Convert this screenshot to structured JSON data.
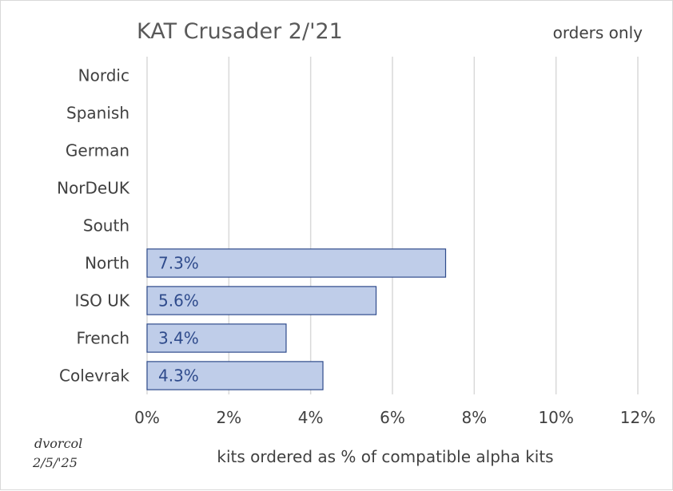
{
  "chart_data": {
    "type": "bar",
    "orientation": "horizontal",
    "title": "KAT Crusader 2/'21",
    "subtitle": "orders only",
    "categories": [
      "Nordic",
      "Spanish",
      "German",
      "NorDeUK",
      "South",
      "North",
      "ISO UK",
      "French",
      "Colevrak"
    ],
    "values": [
      0,
      0,
      0,
      0,
      0,
      7.3,
      5.6,
      3.4,
      4.3
    ],
    "data_labels": [
      "",
      "",
      "",
      "",
      "",
      "7.3%",
      "5.6%",
      "3.4%",
      "4.3%"
    ],
    "xlabel": "kits ordered as % of compatible alpha kits",
    "ylabel": "",
    "xlim": [
      0,
      12
    ],
    "x_ticks": [
      "0%",
      "2%",
      "4%",
      "6%",
      "8%",
      "10%",
      "12%"
    ],
    "grid": true,
    "bar_color": "#bfcde9",
    "bar_edge_color": "#2f4b8c",
    "gridline_color": "#d9d9d9",
    "signature": [
      "dvorcol",
      "2/5/'25"
    ]
  }
}
